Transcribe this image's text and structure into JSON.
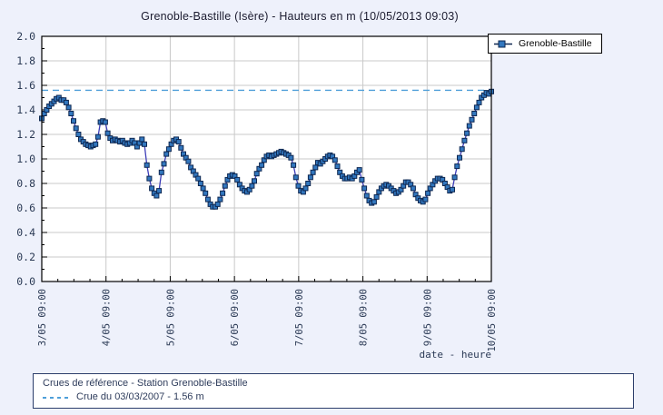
{
  "page": {
    "title": "Grenoble-Bastille (Isère) - Hauteurs en m (10/05/2013 09:03)"
  },
  "legend": {
    "label": "Grenoble-Bastille"
  },
  "info_box": {
    "line1": "Crues de référence - Station Grenoble-Bastille",
    "line2": "Crue du 03/03/2007 - 1.56 m"
  },
  "colors": {
    "page_bg": "#eef1fb",
    "plot_bg": "#ffffff",
    "grid": "#c9c9c9",
    "axis": "#000000",
    "series_line": "#3d3db8",
    "marker_fill": "#3277be",
    "marker_stroke": "#0e2750",
    "reference_dash": "#4f9fd9",
    "tick_text": "#2b3a55"
  },
  "chart_data": {
    "type": "line",
    "title": "Grenoble-Bastille (Isère) - Hauteurs en m (10/05/2013 09:03)",
    "xlabel": "date - heure",
    "ylabel": "Hauteurs en m",
    "ylim": [
      0.0,
      2.0
    ],
    "y_tick_step": 0.2,
    "y_minor_step": 0.1,
    "x_tick_labels": [
      "3/05 09:00",
      "4/05 09:00",
      "5/05 09:00",
      "6/05 09:00",
      "7/05 09:00",
      "8/05 09:00",
      "9/05 09:00",
      "10/05 09:00"
    ],
    "x_minor_per_day": 4,
    "grid": true,
    "legend_position": "top-right",
    "reference_line": {
      "value": 1.56,
      "label": "Crue du 03/03/2007 - 1.56 m",
      "style": "dashed"
    },
    "series": [
      {
        "name": "Grenoble-Bastille",
        "marker": "square",
        "x_start": "3/05 09:00",
        "x_end": "10/05 09:00",
        "values": [
          1.33,
          1.37,
          1.4,
          1.43,
          1.45,
          1.47,
          1.49,
          1.5,
          1.48,
          1.48,
          1.46,
          1.42,
          1.37,
          1.31,
          1.25,
          1.2,
          1.16,
          1.14,
          1.12,
          1.11,
          1.1,
          1.11,
          1.12,
          1.18,
          1.3,
          1.31,
          1.3,
          1.21,
          1.17,
          1.15,
          1.16,
          1.15,
          1.14,
          1.15,
          1.13,
          1.12,
          1.13,
          1.15,
          1.13,
          1.1,
          1.13,
          1.16,
          1.12,
          0.95,
          0.84,
          0.76,
          0.72,
          0.7,
          0.74,
          0.89,
          0.96,
          1.04,
          1.08,
          1.12,
          1.15,
          1.16,
          1.14,
          1.09,
          1.04,
          1.01,
          0.98,
          0.93,
          0.9,
          0.87,
          0.84,
          0.8,
          0.76,
          0.72,
          0.67,
          0.63,
          0.61,
          0.61,
          0.63,
          0.67,
          0.72,
          0.78,
          0.83,
          0.86,
          0.87,
          0.86,
          0.83,
          0.79,
          0.76,
          0.74,
          0.73,
          0.75,
          0.78,
          0.82,
          0.88,
          0.92,
          0.95,
          0.99,
          1.02,
          1.03,
          1.02,
          1.03,
          1.04,
          1.05,
          1.06,
          1.05,
          1.04,
          1.03,
          1.01,
          0.95,
          0.85,
          0.78,
          0.74,
          0.73,
          0.76,
          0.8,
          0.85,
          0.89,
          0.93,
          0.97,
          0.96,
          0.98,
          1.0,
          1.02,
          1.03,
          1.02,
          0.99,
          0.94,
          0.89,
          0.86,
          0.84,
          0.84,
          0.85,
          0.84,
          0.86,
          0.89,
          0.91,
          0.83,
          0.76,
          0.7,
          0.66,
          0.64,
          0.65,
          0.69,
          0.73,
          0.76,
          0.78,
          0.79,
          0.78,
          0.76,
          0.74,
          0.72,
          0.73,
          0.75,
          0.78,
          0.81,
          0.81,
          0.79,
          0.76,
          0.71,
          0.68,
          0.66,
          0.65,
          0.67,
          0.72,
          0.76,
          0.79,
          0.82,
          0.84,
          0.84,
          0.83,
          0.8,
          0.77,
          0.74,
          0.75,
          0.85,
          0.94,
          1.01,
          1.08,
          1.15,
          1.21,
          1.27,
          1.32,
          1.37,
          1.42,
          1.46,
          1.5,
          1.52,
          1.54,
          1.53,
          1.55
        ]
      }
    ]
  }
}
